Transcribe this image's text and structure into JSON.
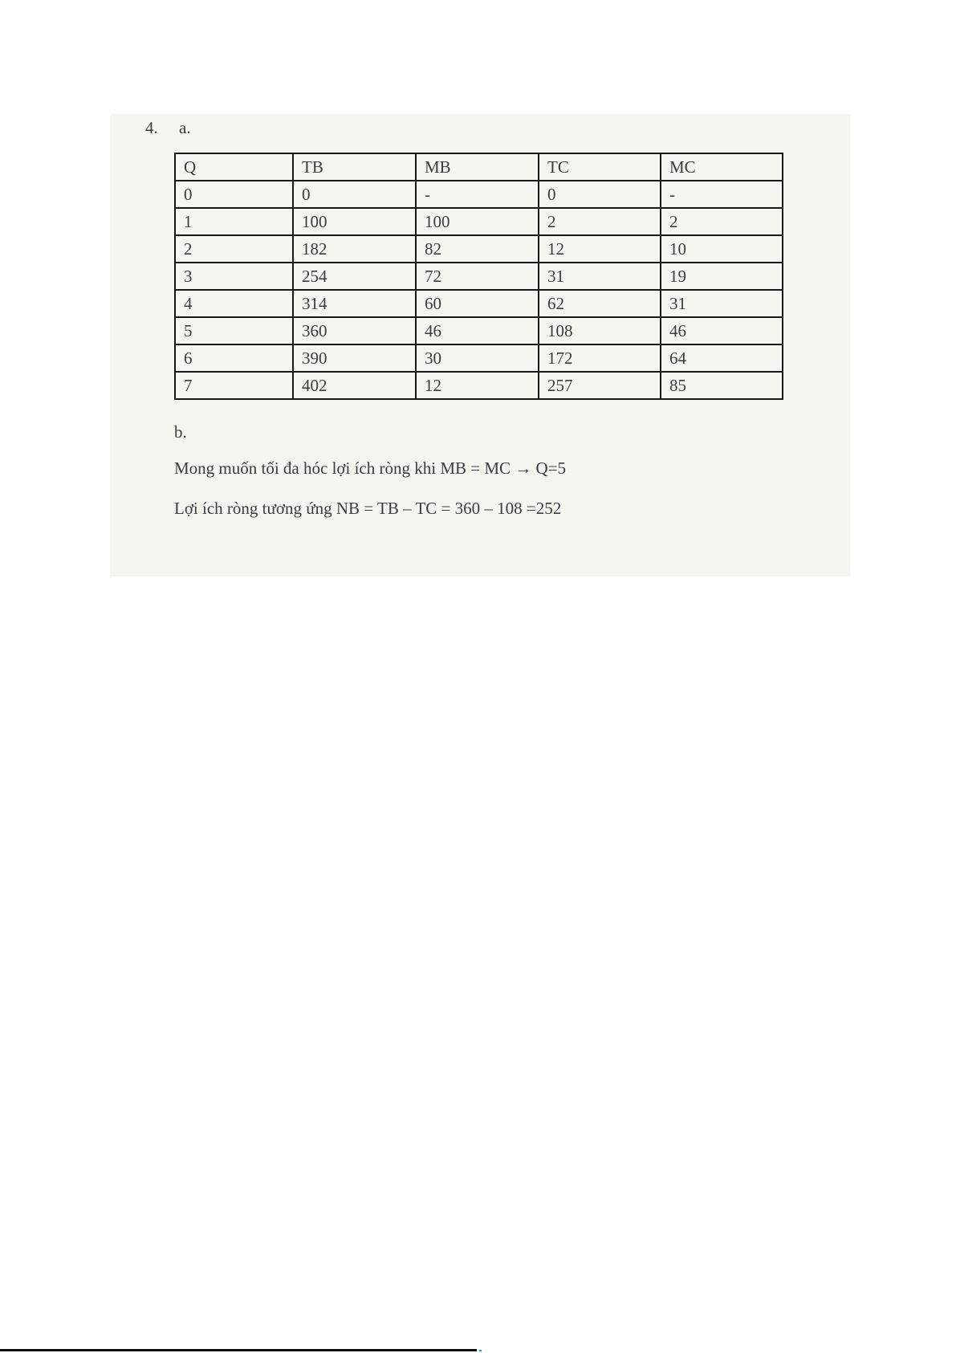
{
  "content": {
    "question_number": "4.",
    "part_a_label": "a.",
    "part_b_label": "b.",
    "answer_line_1": "Mong muốn tối đa hóc lợi ích ròng khi MB = MC → Q=5",
    "answer_line_2": "Lợi ích ròng tương ứng NB = TB – TC = 360 – 108 =252"
  },
  "table": {
    "headers": [
      "Q",
      "TB",
      "MB",
      "TC",
      "MC"
    ],
    "rows": [
      [
        "0",
        "0",
        "-",
        "0",
        "-"
      ],
      [
        "1",
        "100",
        "100",
        "2",
        "2"
      ],
      [
        "2",
        "182",
        "82",
        "12",
        "10"
      ],
      [
        "3",
        "254",
        "72",
        "31",
        "19"
      ],
      [
        "4",
        "314",
        "60",
        "62",
        "31"
      ],
      [
        "5",
        "360",
        "46",
        "108",
        "46"
      ],
      [
        "6",
        "390",
        "30",
        "172",
        "64"
      ],
      [
        "7",
        "402",
        "12",
        "257",
        "85"
      ]
    ]
  },
  "colors": {
    "page_bg": "#ffffff",
    "panel_bg": "#f5f6f0",
    "text": "#3b3c42",
    "border": "#161616",
    "bottom_bar": "#0d0d0d",
    "accent_dot": "#00b3ab"
  }
}
